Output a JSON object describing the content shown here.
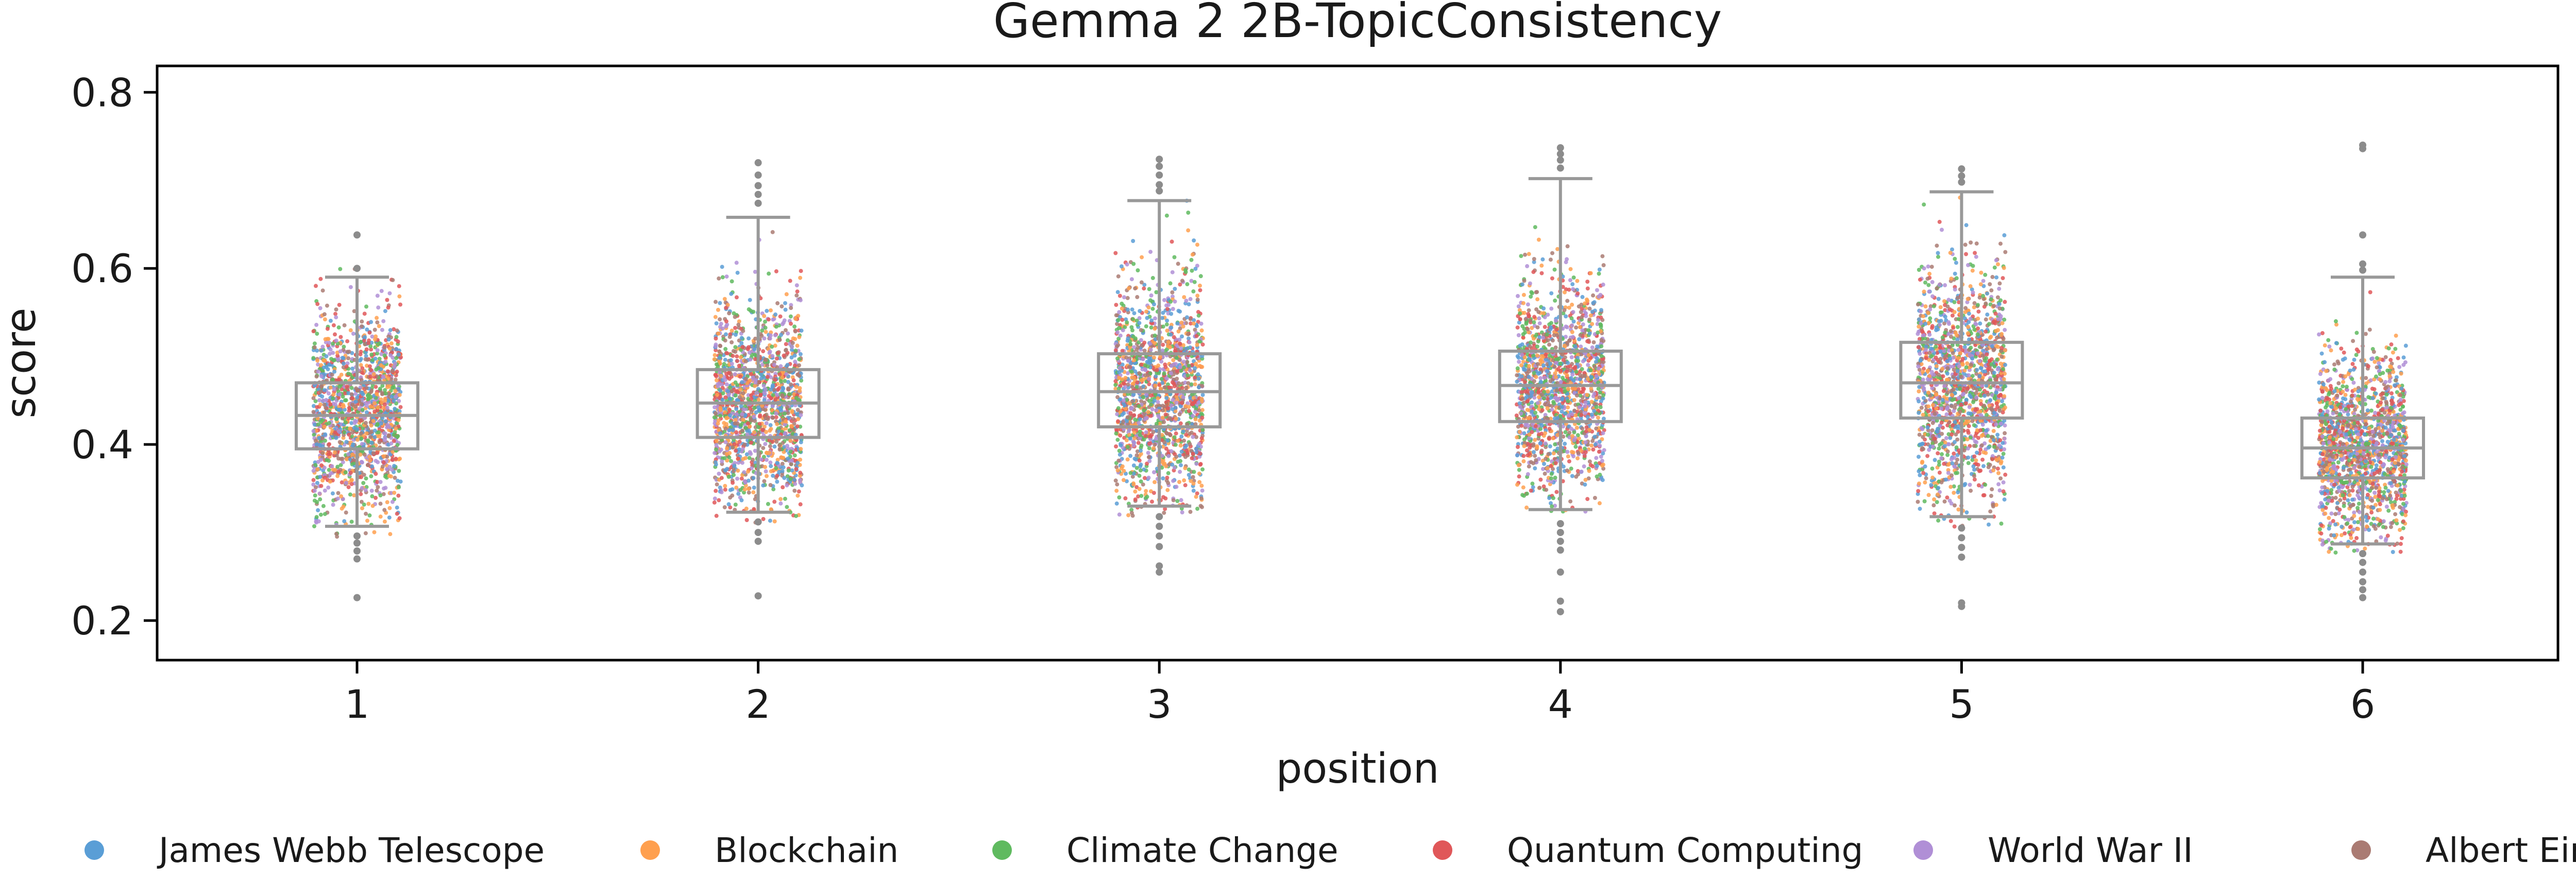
{
  "chart_data": {
    "type": "box+strip",
    "title": "Gemma 2 2B-TopicConsistency",
    "xlabel": "position",
    "ylabel": "score",
    "ylim": [
      0.155,
      0.83
    ],
    "yticks": [
      "0.2",
      "0.4",
      "0.6",
      "0.8"
    ],
    "categories": [
      "1",
      "2",
      "3",
      "4",
      "5",
      "6"
    ],
    "grid": false,
    "legend": "bottom",
    "box_color": "#999999",
    "boxes": [
      {
        "position": "1",
        "whisker_low": 0.307,
        "q1": 0.395,
        "median": 0.433,
        "q3": 0.47,
        "whisker_high": 0.59,
        "outliers": [
          0.638,
          0.6,
          0.296,
          0.288,
          0.279,
          0.27,
          0.226
        ]
      },
      {
        "position": "2",
        "whisker_low": 0.323,
        "q1": 0.408,
        "median": 0.447,
        "q3": 0.485,
        "whisker_high": 0.658,
        "outliers": [
          0.72,
          0.706,
          0.694,
          0.684,
          0.674,
          0.312,
          0.3,
          0.29,
          0.228
        ]
      },
      {
        "position": "3",
        "whisker_low": 0.33,
        "q1": 0.42,
        "median": 0.46,
        "q3": 0.503,
        "whisker_high": 0.677,
        "outliers": [
          0.724,
          0.716,
          0.706,
          0.695,
          0.688,
          0.318,
          0.307,
          0.296,
          0.284,
          0.262,
          0.255
        ]
      },
      {
        "position": "4",
        "whisker_low": 0.326,
        "q1": 0.426,
        "median": 0.467,
        "q3": 0.506,
        "whisker_high": 0.702,
        "outliers": [
          0.737,
          0.73,
          0.723,
          0.714,
          0.31,
          0.3,
          0.29,
          0.28,
          0.255,
          0.222,
          0.21
        ]
      },
      {
        "position": "5",
        "whisker_low": 0.318,
        "q1": 0.43,
        "median": 0.47,
        "q3": 0.516,
        "whisker_high": 0.687,
        "outliers": [
          0.713,
          0.705,
          0.698,
          0.305,
          0.294,
          0.283,
          0.272,
          0.22,
          0.216
        ]
      },
      {
        "position": "6",
        "whisker_low": 0.287,
        "q1": 0.362,
        "median": 0.396,
        "q3": 0.43,
        "whisker_high": 0.59,
        "outliers": [
          0.74,
          0.736,
          0.638,
          0.605,
          0.598,
          0.276,
          0.266,
          0.255,
          0.244,
          0.235,
          0.226
        ]
      }
    ],
    "series": [
      {
        "name": "James Webb Telescope",
        "color": "#5a9ed6"
      },
      {
        "name": "Blockchain",
        "color": "#ffa04f"
      },
      {
        "name": "Climate Change",
        "color": "#5fba5f"
      },
      {
        "name": "Quantum Computing",
        "color": "#e05759"
      },
      {
        "name": "World War II",
        "color": "#b08fd6"
      },
      {
        "name": "Albert Einstein",
        "color": "#aa7b73"
      }
    ]
  }
}
